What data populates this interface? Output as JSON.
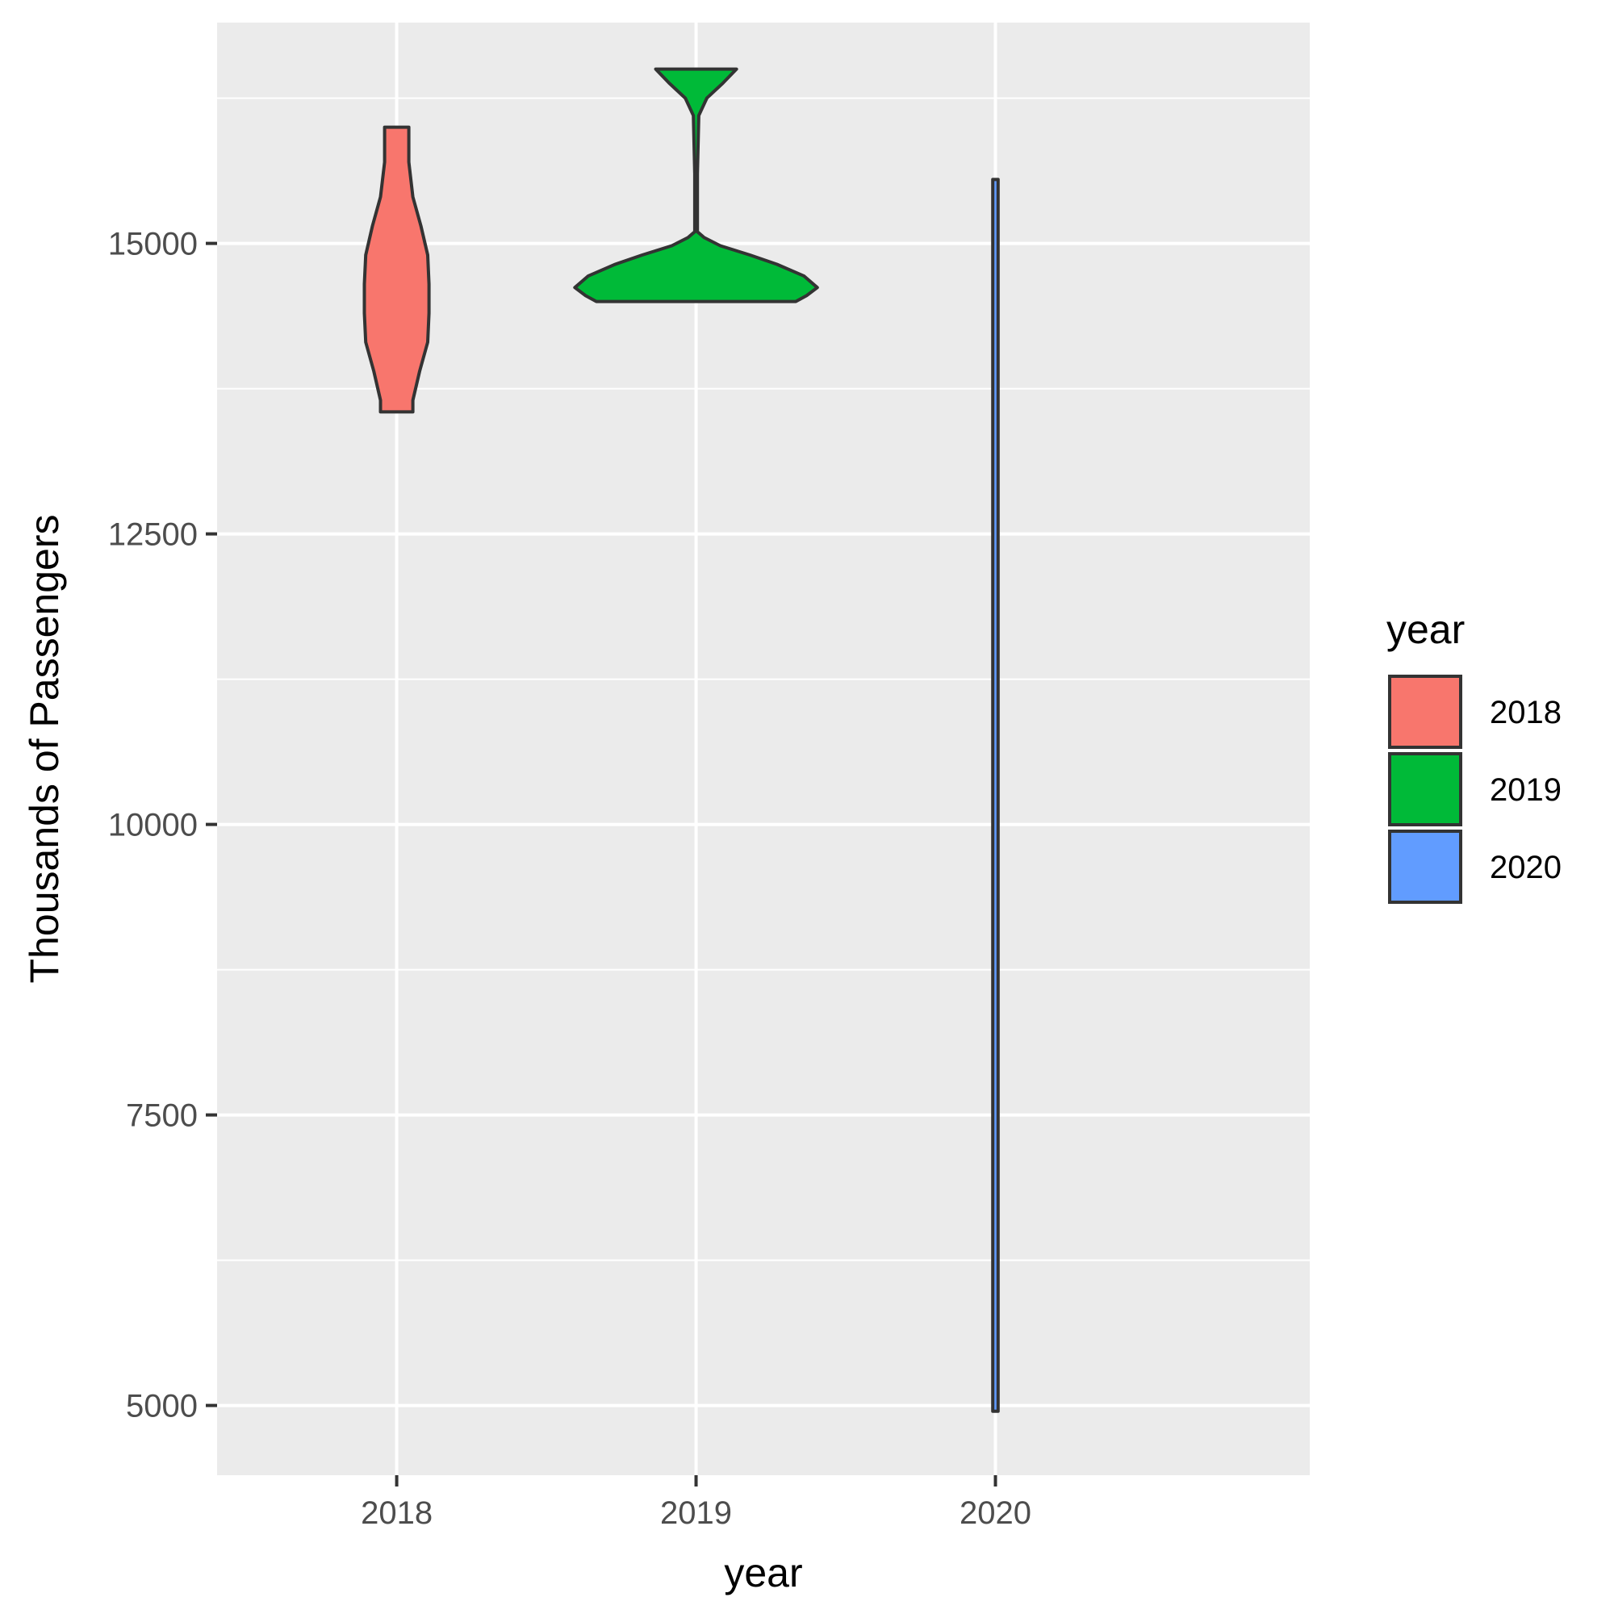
{
  "chart_data": {
    "type": "violin",
    "title": "",
    "xlabel": "year",
    "ylabel": "Thousands of Passengers",
    "categories": [
      "2018",
      "2019",
      "2020"
    ],
    "y_ticks": [
      5000,
      7500,
      10000,
      12500,
      15000
    ],
    "ylim": [
      4400,
      16900
    ],
    "grid": true,
    "legend": {
      "title": "year",
      "position": "right",
      "entries": [
        {
          "label": "2018",
          "color": "#F8766D"
        },
        {
          "label": "2019",
          "color": "#00BA38"
        },
        {
          "label": "2020",
          "color": "#619CFF"
        }
      ]
    },
    "series": [
      {
        "category": "2018",
        "color": "#F8766D",
        "min": 13550,
        "max": 16000,
        "profile": [
          [
            13550,
            0.12
          ],
          [
            13650,
            0.12
          ],
          [
            13900,
            0.17
          ],
          [
            14150,
            0.23
          ],
          [
            14400,
            0.24
          ],
          [
            14650,
            0.24
          ],
          [
            14900,
            0.23
          ],
          [
            15150,
            0.18
          ],
          [
            15400,
            0.12
          ],
          [
            15700,
            0.09
          ],
          [
            16000,
            0.09
          ]
        ]
      },
      {
        "category": "2019",
        "color": "#00BA38",
        "min": 14500,
        "max": 16500,
        "profile": [
          [
            14500,
            0.74
          ],
          [
            14550,
            0.82
          ],
          [
            14620,
            0.9
          ],
          [
            14720,
            0.8
          ],
          [
            14820,
            0.6
          ],
          [
            14900,
            0.4
          ],
          [
            14980,
            0.18
          ],
          [
            15050,
            0.06
          ],
          [
            15100,
            0.01
          ],
          [
            15600,
            0.01
          ],
          [
            16100,
            0.02
          ],
          [
            16250,
            0.08
          ],
          [
            16380,
            0.2
          ],
          [
            16500,
            0.3
          ]
        ]
      },
      {
        "category": "2020",
        "color": "#619CFF",
        "min": 4950,
        "max": 15550,
        "profile": [
          [
            4950,
            0.02
          ],
          [
            15550,
            0.02
          ]
        ]
      }
    ]
  }
}
